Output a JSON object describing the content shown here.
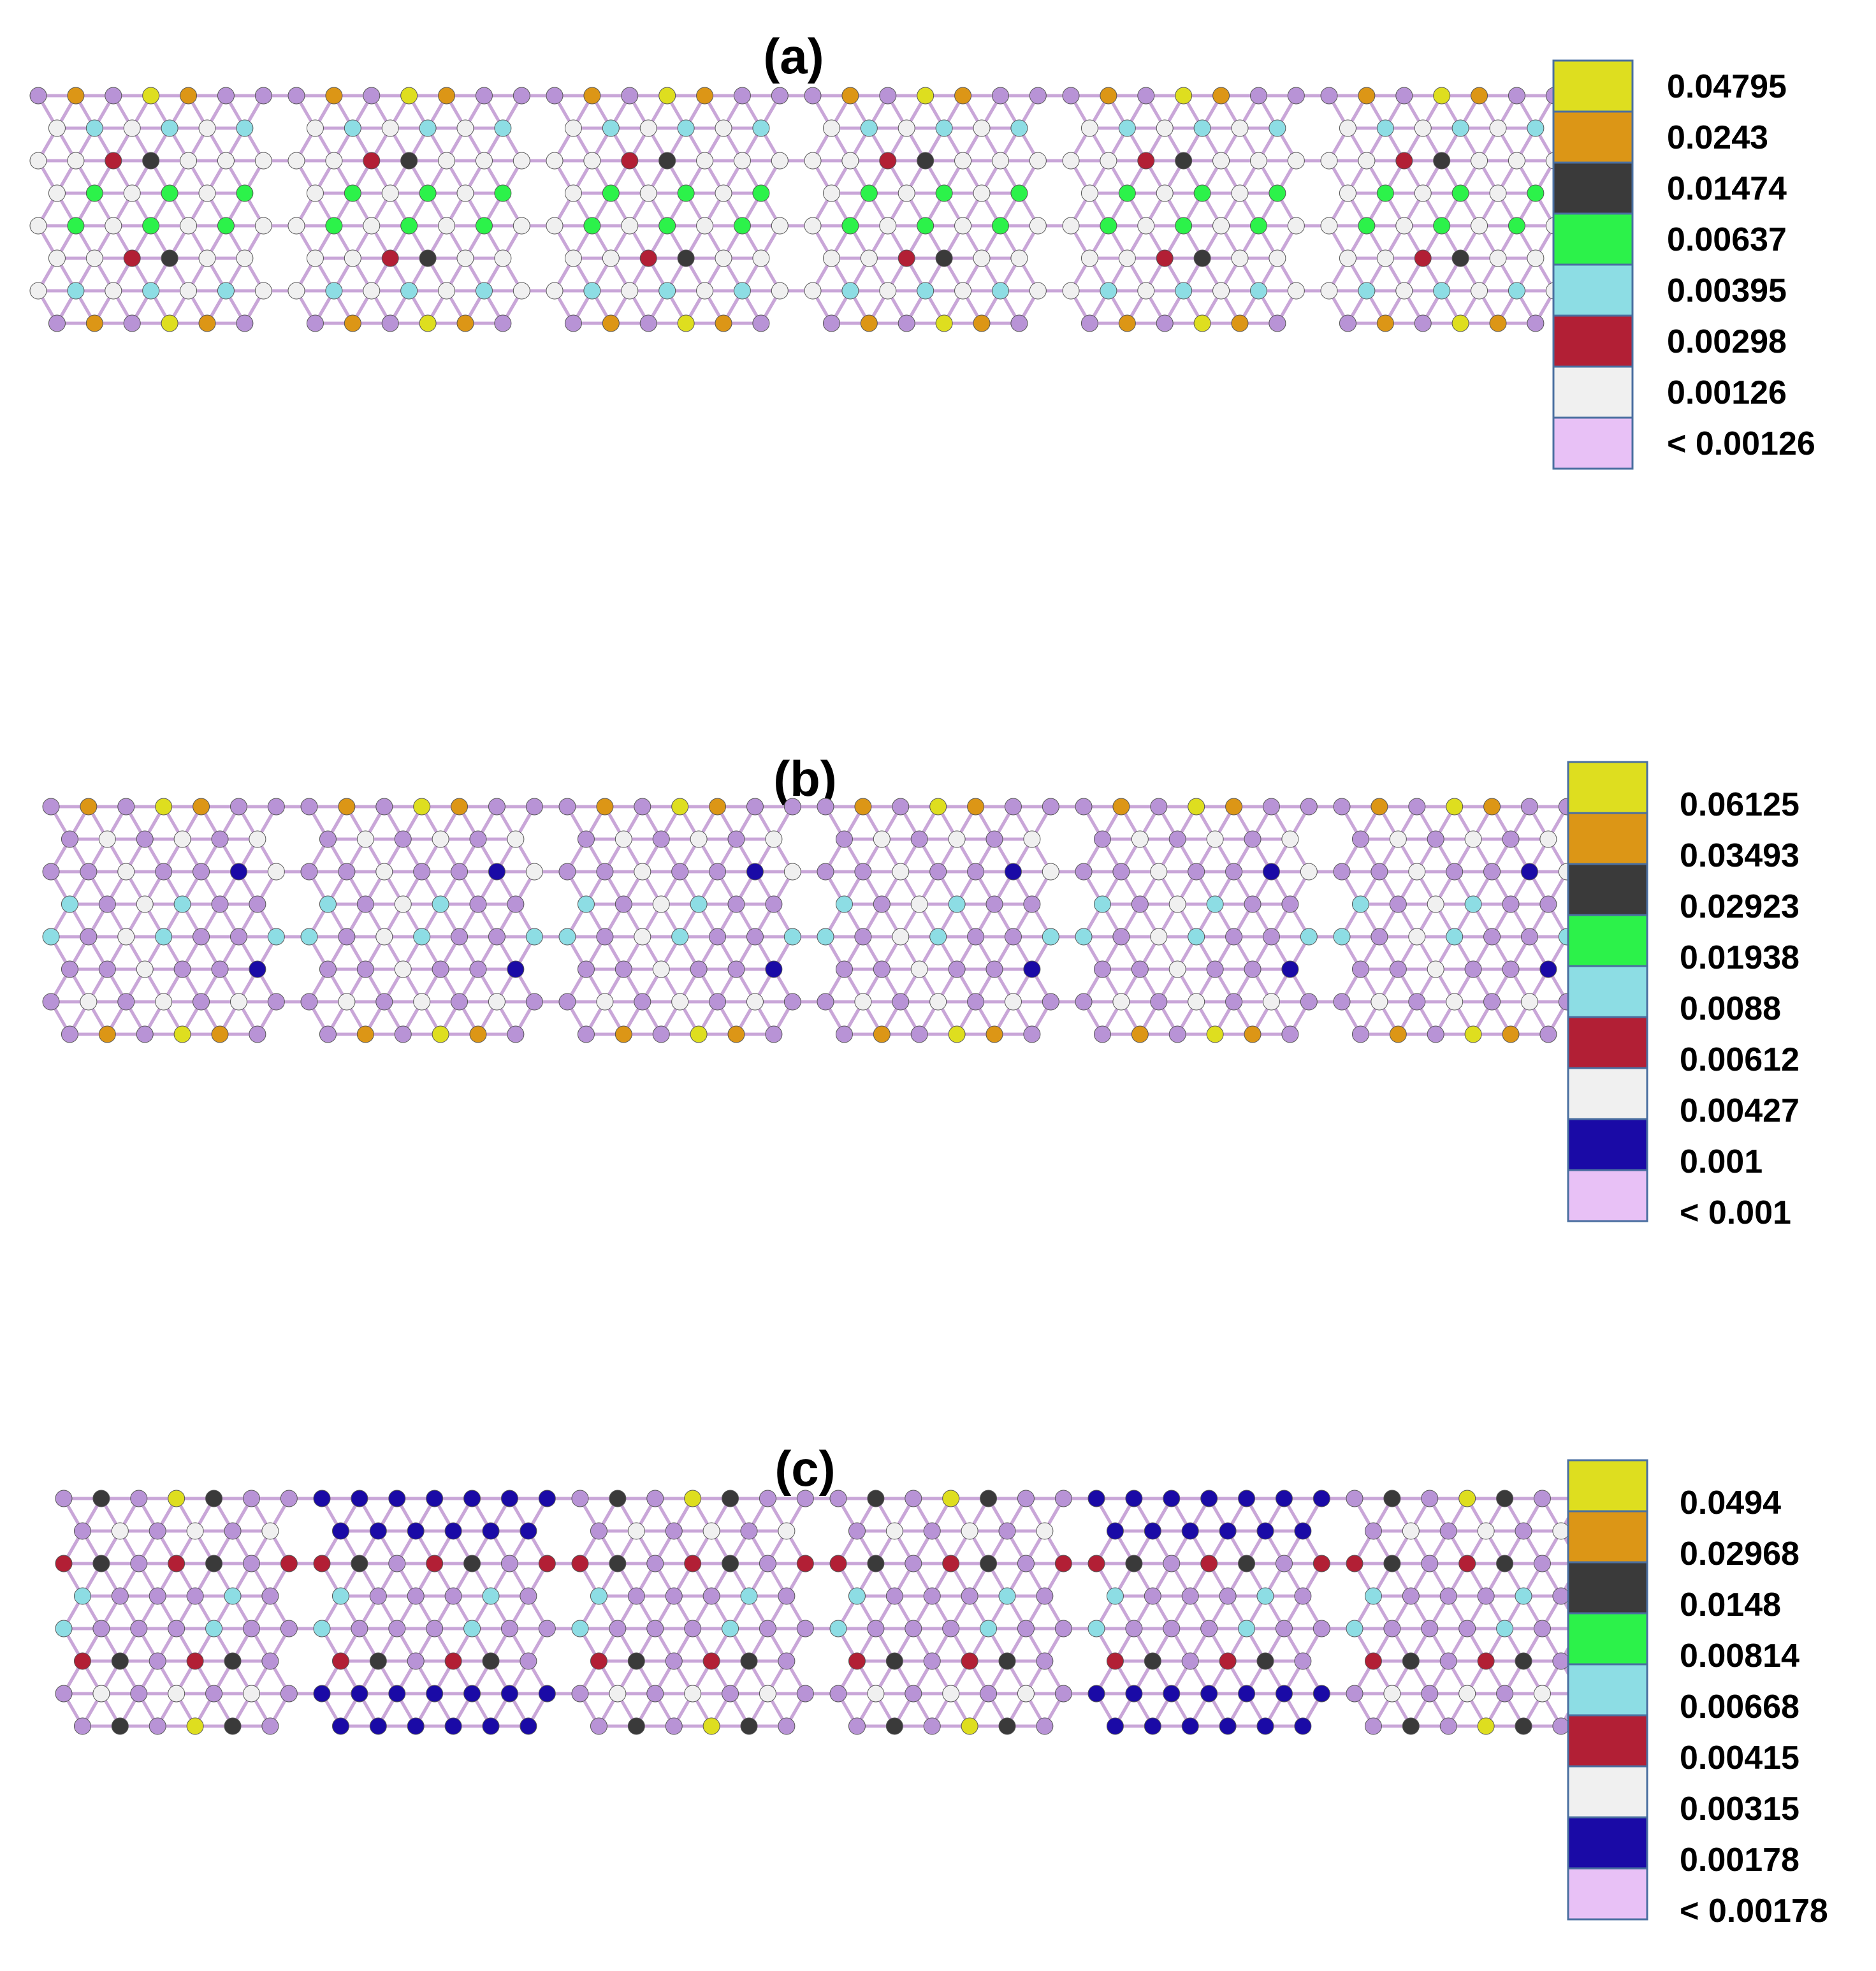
{
  "panels": [
    {
      "id": "a",
      "label": "(a)",
      "legend": [
        {
          "value": "0.04795",
          "color": "#dede1f"
        },
        {
          "value": "0.0243",
          "color": "#dc9616"
        },
        {
          "value": "0.01474",
          "color": "#3a3a3a"
        },
        {
          "value": "0.00637",
          "color": "#2cf24a"
        },
        {
          "value": "0.00395",
          "color": "#8ddde4"
        },
        {
          "value": "0.00298",
          "color": "#b21f35"
        },
        {
          "value": "0.00126",
          "color": "#f0f0f0"
        },
        {
          "value": "< 0.00126",
          "color": "#e8c1f6"
        }
      ],
      "segments": [
        {
          "pattern": "full",
          "segment_index": 0
        },
        {
          "pattern": "full",
          "segment_index": 1
        },
        {
          "pattern": "full",
          "segment_index": 2
        },
        {
          "pattern": "full",
          "segment_index": 3
        },
        {
          "pattern": "full",
          "segment_index": 4
        },
        {
          "pattern": "full",
          "segment_index": 5
        }
      ]
    },
    {
      "id": "b",
      "label": "(b)",
      "legend": [
        {
          "value": "0.06125",
          "color": "#dede1f"
        },
        {
          "value": "0.03493",
          "color": "#dc9616"
        },
        {
          "value": "0.02923",
          "color": "#3a3a3a"
        },
        {
          "value": "0.01938",
          "color": "#2cf24a"
        },
        {
          "value": "0.0088",
          "color": "#8ddde4"
        },
        {
          "value": "0.00612",
          "color": "#b21f35"
        },
        {
          "value": "0.00427",
          "color": "#f0f0f0"
        },
        {
          "value": "0.001",
          "color": "#1a0aa6"
        },
        {
          "value": "< 0.001",
          "color": "#e8c1f6"
        }
      ]
    },
    {
      "id": "c",
      "label": "(c)",
      "legend": [
        {
          "value": "0.0494",
          "color": "#dede1f"
        },
        {
          "value": "0.02968",
          "color": "#dc9616"
        },
        {
          "value": "0.0148",
          "color": "#3a3a3a"
        },
        {
          "value": "0.00814",
          "color": "#2cf24a"
        },
        {
          "value": "0.00668",
          "color": "#8ddde4"
        },
        {
          "value": "0.00415",
          "color": "#b21f35"
        },
        {
          "value": "0.00315",
          "color": "#f0f0f0"
        },
        {
          "value": "0.00178",
          "color": "#1a0aa6"
        },
        {
          "value": "< 0.00178",
          "color": "#e8c1f6"
        }
      ]
    }
  ],
  "atom_colors": {
    "default": "#b893d6",
    "bond": "#c9a6d8"
  }
}
